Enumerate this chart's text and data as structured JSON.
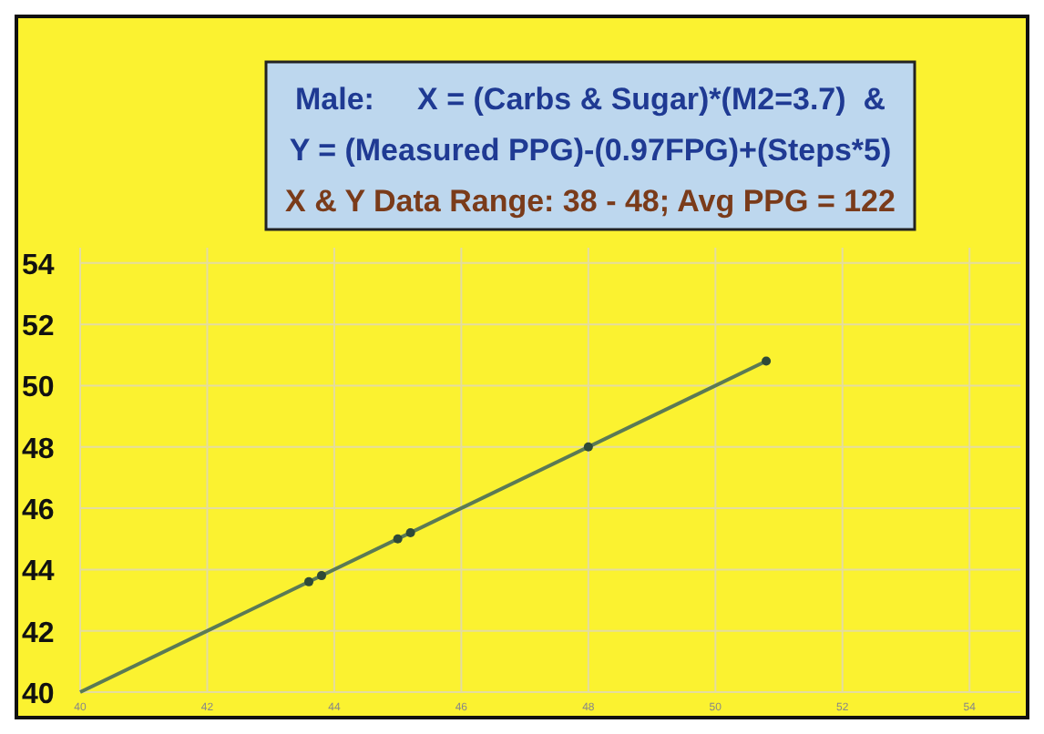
{
  "chart_data": {
    "type": "scatter",
    "title": "Male:     X = (Carbs & Sugar)*(M2=3.7)  &",
    "subtitle": "Y = (Measured PPG)-(0.97FPG)+(Steps*5)",
    "annotations": [
      "X & Y Data Range: 38 - 48;  Avg PPG = 122"
    ],
    "xlim": [
      40,
      54.8
    ],
    "xticks": [
      40,
      42,
      44,
      46,
      48,
      50,
      52,
      54
    ],
    "ylim": [
      40,
      54.5
    ],
    "yticks": [
      40,
      42,
      44,
      46,
      48,
      50,
      52,
      54
    ],
    "grid": true,
    "marker": "circle",
    "series": [
      {
        "type": "line",
        "color": "#5b7a55",
        "x": [
          40,
          50.8
        ],
        "values": [
          40,
          50.8
        ],
        "marker": "none",
        "line_style": "solid"
      },
      {
        "color": "#2f4a38",
        "x": [
          43.6,
          43.8,
          45,
          45.2,
          48,
          50.8
        ],
        "values": [
          43.6,
          43.8,
          45,
          45.2,
          48,
          50.8
        ]
      }
    ]
  }
}
